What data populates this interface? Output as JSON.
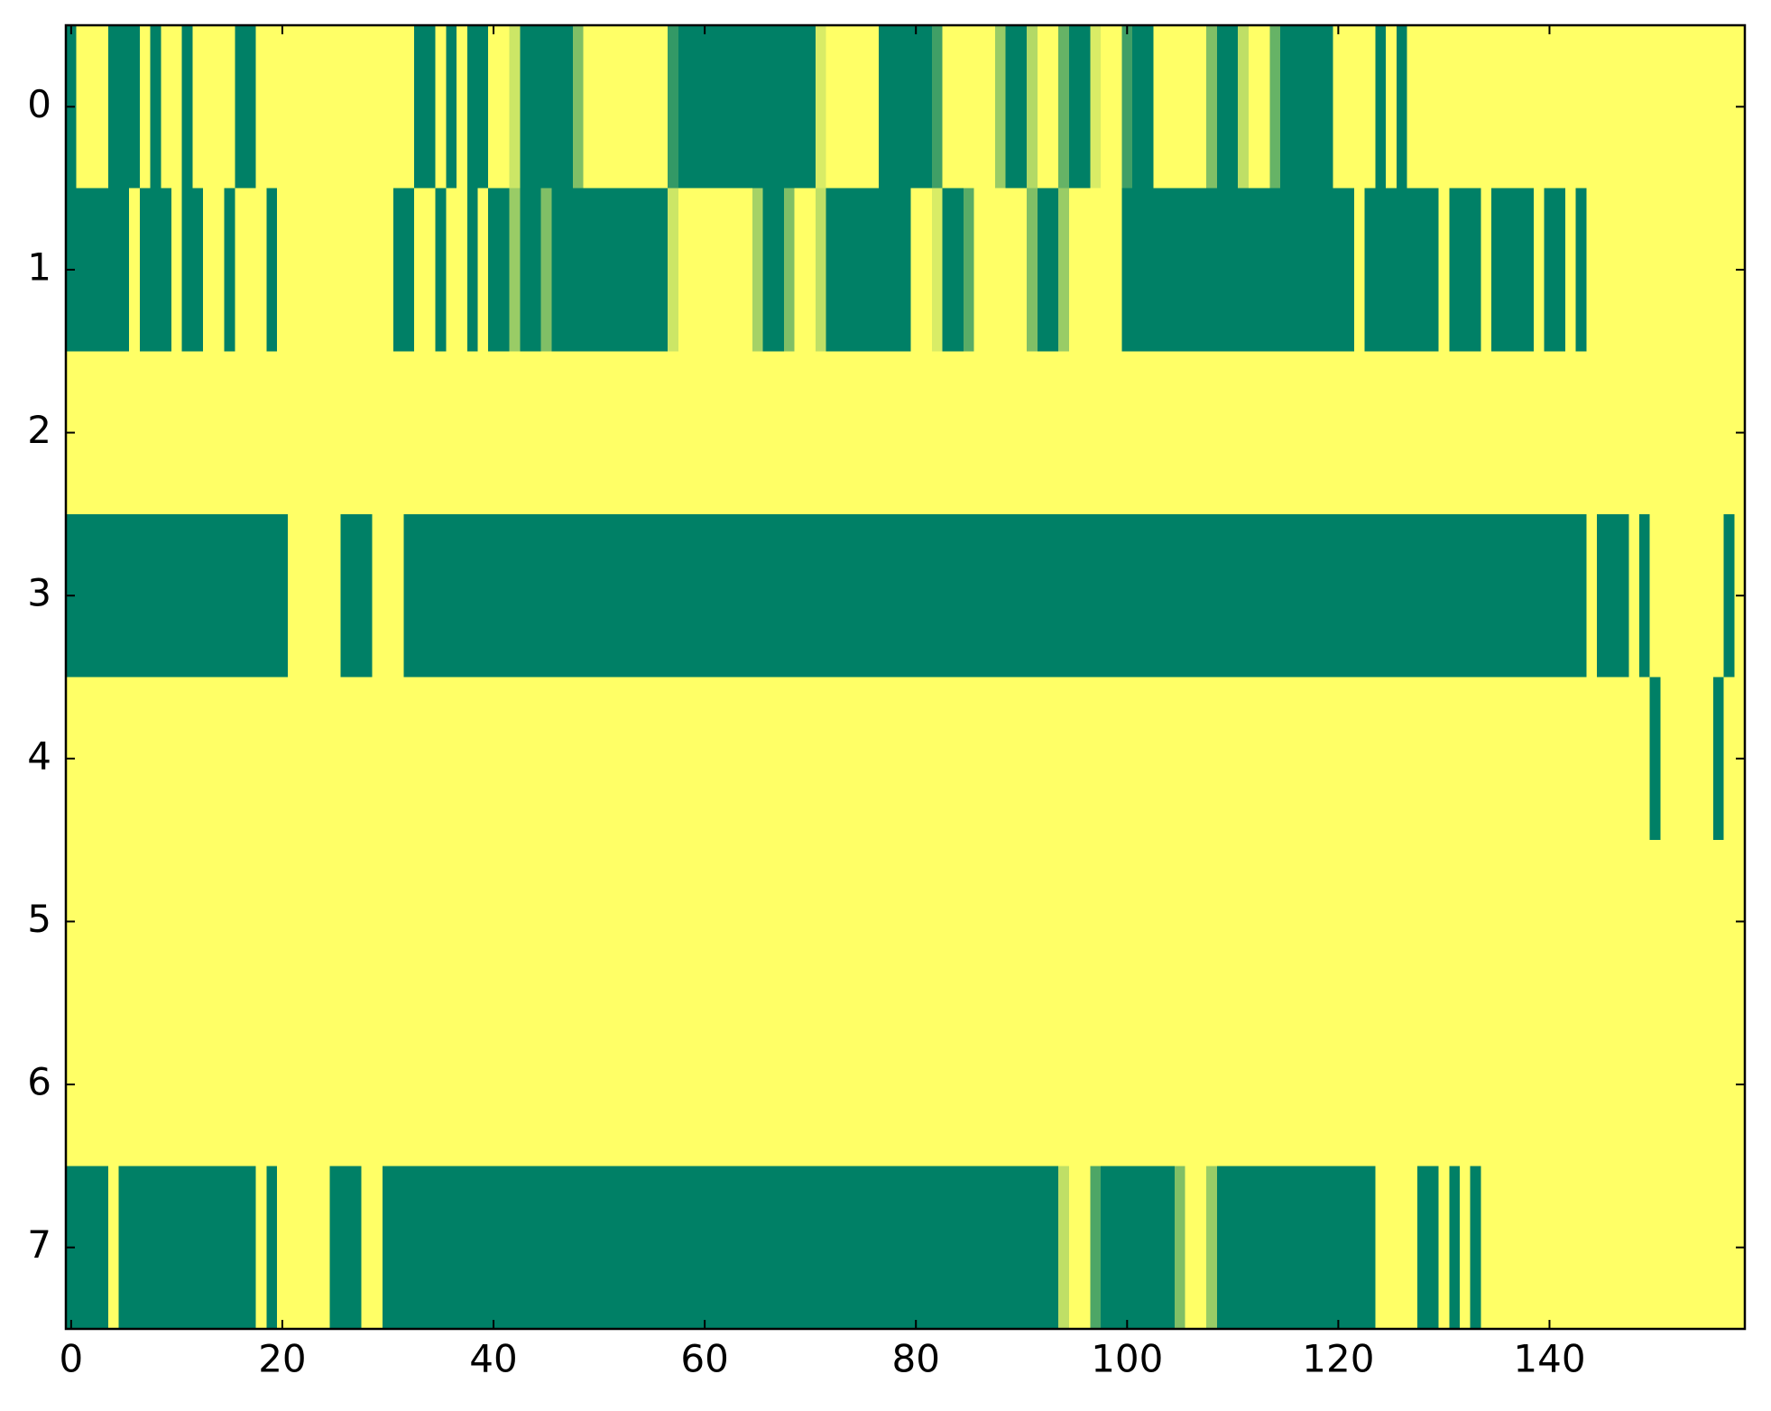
{
  "chart_data": {
    "type": "heatmap",
    "colormap": "summer",
    "z": [
      [
        0,
        1,
        1,
        1,
        0,
        0,
        0,
        1,
        0,
        1,
        1,
        0,
        1,
        1,
        1,
        1,
        0,
        0,
        1,
        1,
        1,
        1,
        1,
        1,
        1,
        1,
        1,
        1,
        1,
        1,
        1,
        1,
        1,
        0,
        0,
        1,
        0,
        1,
        0,
        0,
        1,
        1,
        0.8,
        0,
        0,
        0,
        0,
        0,
        0.5,
        1,
        1,
        1,
        1,
        1,
        1,
        1,
        1,
        0.2,
        0,
        0,
        0,
        0,
        0,
        0,
        0,
        0,
        0,
        0,
        0,
        0,
        0,
        0.85,
        1,
        1,
        1,
        1,
        1,
        0,
        0,
        0,
        0,
        0,
        0.25,
        1,
        1,
        1,
        1,
        1,
        0.6,
        0,
        0,
        0.7,
        1,
        1,
        0.4,
        0,
        0,
        0.85,
        1,
        1,
        0.25,
        0,
        0,
        1,
        1,
        1,
        1,
        1,
        0.5,
        0,
        0,
        0.75,
        1,
        1,
        0.4,
        0,
        0,
        0,
        0,
        0,
        1,
        1,
        1,
        1,
        0,
        1,
        0,
        1,
        1,
        1,
        1,
        1,
        1,
        1,
        1,
        1,
        1,
        1,
        1,
        1,
        1,
        1,
        1,
        1,
        1,
        1,
        1,
        1,
        1,
        1,
        1,
        1,
        1,
        1,
        1,
        1,
        1,
        1,
        1
      ],
      [
        0,
        0,
        0,
        0,
        0,
        0,
        1,
        0,
        0,
        0,
        1,
        0,
        0,
        1,
        1,
        0,
        1,
        1,
        1,
        0,
        1,
        1,
        1,
        1,
        1,
        1,
        1,
        1,
        1,
        1,
        1,
        0,
        0,
        1,
        1,
        0,
        1,
        1,
        0,
        1,
        0,
        0,
        0.6,
        0,
        0,
        0.5,
        0,
        0,
        0,
        0,
        0,
        0,
        0,
        0,
        0,
        0,
        0,
        0.8,
        1,
        1,
        1,
        1,
        1,
        1,
        1,
        0.65,
        0,
        0,
        0.5,
        1,
        1,
        0.75,
        0,
        0,
        0,
        0,
        0,
        0,
        0,
        0,
        1,
        1,
        0.85,
        0,
        0,
        0.35,
        1,
        1,
        1,
        1,
        1,
        0.5,
        0,
        0,
        0.6,
        1,
        1,
        1,
        1,
        1,
        0,
        0,
        0,
        0,
        0,
        0,
        0,
        0,
        0,
        0,
        0,
        0,
        0,
        0,
        0,
        0,
        0,
        0,
        0,
        0,
        0,
        0,
        1,
        0,
        0,
        0,
        0,
        0,
        0,
        0,
        1,
        0,
        0,
        0,
        1,
        0,
        0,
        0,
        0,
        1,
        0,
        0,
        1,
        0,
        1,
        1,
        1,
        1,
        1,
        1,
        1,
        1,
        1,
        1,
        1,
        1,
        1,
        1,
        1
      ],
      [
        1,
        1,
        1,
        1,
        1,
        1,
        1,
        1,
        1,
        1,
        1,
        1,
        1,
        1,
        1,
        1,
        1,
        1,
        1,
        1,
        1,
        1,
        1,
        1,
        1,
        1,
        1,
        1,
        1,
        1,
        1,
        1,
        1,
        1,
        1,
        1,
        1,
        1,
        1,
        1,
        1,
        1,
        1,
        1,
        1,
        1,
        1,
        1,
        1,
        1,
        1,
        1,
        1,
        1,
        1,
        1,
        1,
        1,
        1,
        1,
        1,
        1,
        1,
        1,
        1,
        1,
        1,
        1,
        1,
        1,
        1,
        1,
        1,
        1,
        1,
        1,
        1,
        1,
        1,
        1,
        1,
        1,
        1,
        1,
        1,
        1,
        1,
        1,
        1,
        1,
        1,
        1,
        1,
        1,
        1,
        1,
        1,
        1,
        1,
        1,
        1,
        1,
        1,
        1,
        1,
        1,
        1,
        1,
        1,
        1,
        1,
        1,
        1,
        1,
        1,
        1,
        1,
        1,
        1,
        1,
        1,
        1,
        1,
        1,
        1,
        1,
        1,
        1,
        1,
        1,
        1,
        1,
        1,
        1,
        1,
        1,
        1,
        1,
        1,
        1,
        1,
        1,
        1,
        1,
        1,
        1,
        1,
        1,
        1,
        1,
        1,
        1,
        1,
        1,
        1,
        1,
        1,
        1,
        1
      ],
      [
        0,
        0,
        0,
        0,
        0,
        0,
        0,
        0,
        0,
        0,
        0,
        0,
        0,
        0,
        0,
        0,
        0,
        0,
        0,
        0,
        0,
        1,
        1,
        1,
        1,
        1,
        0,
        0,
        0,
        1,
        1,
        1,
        0,
        0,
        0,
        0,
        0,
        0,
        0,
        0,
        0,
        0,
        0,
        0,
        0,
        0,
        0,
        0,
        0,
        0,
        0,
        0,
        0,
        0,
        0,
        0,
        0,
        0,
        0,
        0,
        0,
        0,
        0,
        0,
        0,
        0,
        0,
        0,
        0,
        0,
        0,
        0,
        0,
        0,
        0,
        0,
        0,
        0,
        0,
        0,
        0,
        0,
        0,
        0,
        0,
        0,
        0,
        0,
        0,
        0,
        0,
        0,
        0,
        0,
        0,
        0,
        0,
        0,
        0,
        0,
        0,
        0,
        0,
        0,
        0,
        0,
        0,
        0,
        0,
        0,
        0,
        0,
        0,
        0,
        0,
        0,
        0,
        0,
        0,
        0,
        0,
        0,
        0,
        0,
        0,
        0,
        0,
        0,
        0,
        0,
        0,
        0,
        0,
        0,
        0,
        0,
        0,
        0,
        0,
        0,
        0,
        0,
        0,
        0,
        1,
        0,
        0,
        0,
        1,
        0,
        1,
        1,
        1,
        1,
        1,
        1,
        1,
        0,
        1
      ],
      [
        1,
        1,
        1,
        1,
        1,
        1,
        1,
        1,
        1,
        1,
        1,
        1,
        1,
        1,
        1,
        1,
        1,
        1,
        1,
        1,
        1,
        1,
        1,
        1,
        1,
        1,
        1,
        1,
        1,
        1,
        1,
        1,
        1,
        1,
        1,
        1,
        1,
        1,
        1,
        1,
        1,
        1,
        1,
        1,
        1,
        1,
        1,
        1,
        1,
        1,
        1,
        1,
        1,
        1,
        1,
        1,
        1,
        1,
        1,
        1,
        1,
        1,
        1,
        1,
        1,
        1,
        1,
        1,
        1,
        1,
        1,
        1,
        1,
        1,
        1,
        1,
        1,
        1,
        1,
        1,
        1,
        1,
        1,
        1,
        1,
        1,
        1,
        1,
        1,
        1,
        1,
        1,
        1,
        1,
        1,
        1,
        1,
        1,
        1,
        1,
        1,
        1,
        1,
        1,
        1,
        1,
        1,
        1,
        1,
        1,
        1,
        1,
        1,
        1,
        1,
        1,
        1,
        1,
        1,
        1,
        1,
        1,
        1,
        1,
        1,
        1,
        1,
        1,
        1,
        1,
        1,
        1,
        1,
        1,
        1,
        1,
        1,
        1,
        1,
        1,
        1,
        1,
        1,
        1,
        1,
        1,
        1,
        1,
        1,
        1,
        0,
        1,
        1,
        1,
        1,
        1,
        0,
        1,
        1
      ],
      [
        1,
        1,
        1,
        1,
        1,
        1,
        1,
        1,
        1,
        1,
        1,
        1,
        1,
        1,
        1,
        1,
        1,
        1,
        1,
        1,
        1,
        1,
        1,
        1,
        1,
        1,
        1,
        1,
        1,
        1,
        1,
        1,
        1,
        1,
        1,
        1,
        1,
        1,
        1,
        1,
        1,
        1,
        1,
        1,
        1,
        1,
        1,
        1,
        1,
        1,
        1,
        1,
        1,
        1,
        1,
        1,
        1,
        1,
        1,
        1,
        1,
        1,
        1,
        1,
        1,
        1,
        1,
        1,
        1,
        1,
        1,
        1,
        1,
        1,
        1,
        1,
        1,
        1,
        1,
        1,
        1,
        1,
        1,
        1,
        1,
        1,
        1,
        1,
        1,
        1,
        1,
        1,
        1,
        1,
        1,
        1,
        1,
        1,
        1,
        1,
        1,
        1,
        1,
        1,
        1,
        1,
        1,
        1,
        1,
        1,
        1,
        1,
        1,
        1,
        1,
        1,
        1,
        1,
        1,
        1,
        1,
        1,
        1,
        1,
        1,
        1,
        1,
        1,
        1,
        1,
        1,
        1,
        1,
        1,
        1,
        1,
        1,
        1,
        1,
        1,
        1,
        1,
        1,
        1,
        1,
        1,
        1,
        1,
        1,
        1,
        1,
        1,
        1,
        1,
        1,
        1,
        1,
        1,
        1
      ],
      [
        1,
        1,
        1,
        1,
        1,
        1,
        1,
        1,
        1,
        1,
        1,
        1,
        1,
        1,
        1,
        1,
        1,
        1,
        1,
        1,
        1,
        1,
        1,
        1,
        1,
        1,
        1,
        1,
        1,
        1,
        1,
        1,
        1,
        1,
        1,
        1,
        1,
        1,
        1,
        1,
        1,
        1,
        1,
        1,
        1,
        1,
        1,
        1,
        1,
        1,
        1,
        1,
        1,
        1,
        1,
        1,
        1,
        1,
        1,
        1,
        1,
        1,
        1,
        1,
        1,
        1,
        1,
        1,
        1,
        1,
        1,
        1,
        1,
        1,
        1,
        1,
        1,
        1,
        1,
        1,
        1,
        1,
        1,
        1,
        1,
        1,
        1,
        1,
        1,
        1,
        1,
        1,
        1,
        1,
        1,
        1,
        1,
        1,
        1,
        1,
        1,
        1,
        1,
        1,
        1,
        1,
        1,
        1,
        1,
        1,
        1,
        1,
        1,
        1,
        1,
        1,
        1,
        1,
        1,
        1,
        1,
        1,
        1,
        1,
        1,
        1,
        1,
        1,
        1,
        1,
        1,
        1,
        1,
        1,
        1,
        1,
        1,
        1,
        1,
        1,
        1,
        1,
        1,
        1,
        1,
        1,
        1,
        1,
        1,
        1,
        1,
        1,
        1,
        1,
        1,
        1,
        1,
        1,
        1
      ],
      [
        0,
        0,
        0,
        0,
        1,
        0,
        0,
        0,
        0,
        0,
        0,
        0,
        0,
        0,
        0,
        0,
        0,
        0,
        1,
        0,
        1,
        1,
        1,
        1,
        1,
        0,
        0,
        0,
        1,
        1,
        0,
        0,
        0,
        0,
        0,
        0,
        0,
        0,
        0,
        0,
        0,
        0,
        0,
        0,
        0,
        0,
        0,
        0,
        0,
        0,
        0,
        0,
        0,
        0,
        0,
        0,
        0,
        0,
        0,
        0,
        0,
        0,
        0,
        0,
        0,
        0,
        0,
        0,
        0,
        0,
        0,
        0,
        0,
        0,
        0,
        0,
        0,
        0,
        0,
        0,
        0,
        0,
        0,
        0,
        0,
        0,
        0,
        0,
        0,
        0,
        0,
        0,
        0,
        0,
        0.75,
        1,
        1,
        0.3,
        0,
        0,
        0,
        0,
        0,
        0,
        0,
        0.5,
        1,
        1,
        0.6,
        0,
        0,
        0,
        0,
        0,
        0,
        0,
        0,
        0,
        0,
        0,
        0,
        0,
        0,
        0,
        1,
        1,
        1,
        1,
        0,
        0,
        1,
        0,
        1,
        0,
        1,
        1,
        1,
        1,
        1,
        1,
        1,
        1,
        1,
        1,
        1,
        1,
        1,
        1,
        1,
        1,
        1,
        1,
        1,
        1,
        1,
        1,
        1,
        1,
        1
      ]
    ],
    "xlim": [
      -0.5,
      158.5
    ],
    "ylim": [
      7.5,
      -0.5
    ],
    "xticks": [
      0,
      20,
      40,
      60,
      80,
      100,
      120,
      140
    ],
    "yticks": [
      0,
      1,
      2,
      3,
      4,
      5,
      6,
      7
    ]
  }
}
